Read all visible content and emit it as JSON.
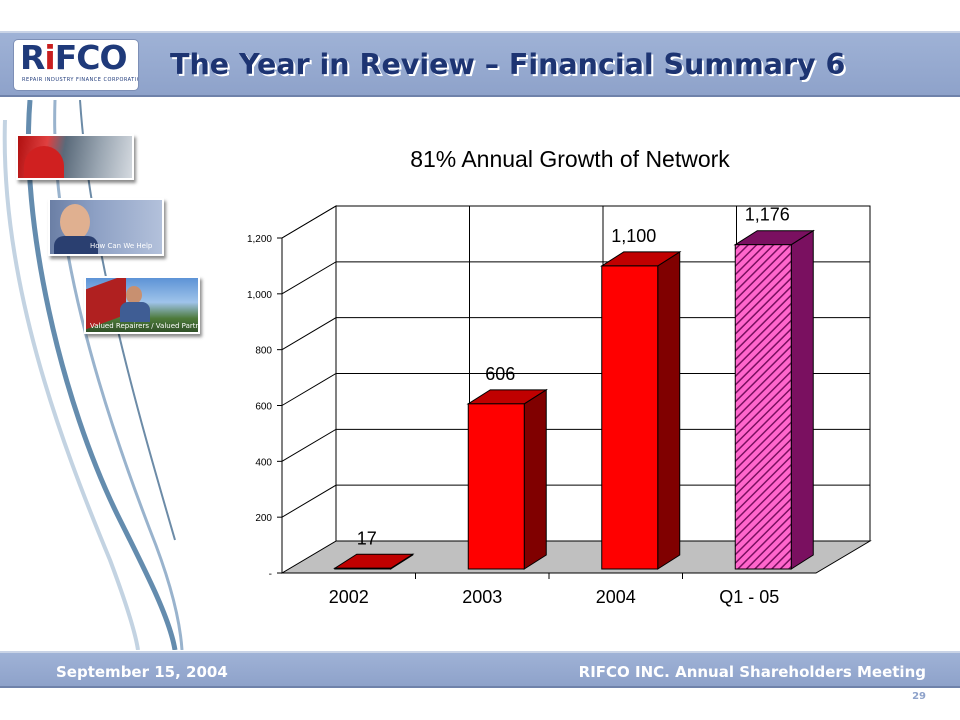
{
  "header": {
    "logo_text_r": "R",
    "logo_text_i": "i",
    "logo_text_rest": "FCO",
    "logo_subtitle": "REPAIR INDUSTRY FINANCE CORPORATION",
    "title": "The Year in Review – Financial Summary 6"
  },
  "photos": {
    "caption_2": "How Can We Help",
    "caption_3": "Valued Repairers / Valued Partners"
  },
  "chart_data": {
    "type": "bar",
    "title": "81% Annual Growth of Network",
    "categories": [
      "2002",
      "2003",
      "2004",
      "Q1 - 05"
    ],
    "values": [
      17,
      606,
      1100,
      1176
    ],
    "data_labels": [
      "17",
      "606",
      "1,100",
      "1,176"
    ],
    "ytick_labels": [
      "-",
      "200",
      "400",
      "600",
      "800",
      "1,000",
      "1,200"
    ],
    "ytick_values": [
      0,
      200,
      400,
      600,
      800,
      1000,
      1200
    ],
    "ylim": [
      0,
      1200
    ],
    "grid": true,
    "bar_color": "#ff0000",
    "bar_side_color": "#800000",
    "bar_top_color": "#c00000",
    "highlight_bar_fill": "#ff66cc",
    "highlight_hatch_color": "#7a1060",
    "floor_color": "#c0c0c0"
  },
  "footer": {
    "left": "September 15, 2004",
    "right": "RIFCO INC. Annual Shareholders Meeting",
    "page": "29"
  }
}
